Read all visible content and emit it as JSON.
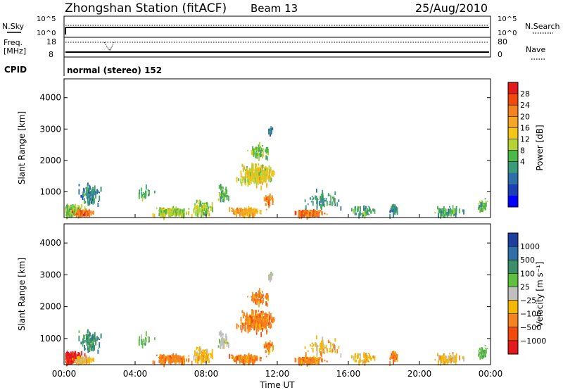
{
  "header": {
    "station": "Zhongshan Station (fitACF)",
    "beam": "Beam 13",
    "date": "25/Aug/2010"
  },
  "top_panels": {
    "nsky_label": "N.Sky",
    "nsearch_label": "N.Search",
    "nsky_ticks": [
      "10^5",
      "10^0"
    ],
    "nsearch_ticks": [
      "10^5",
      "10^0"
    ],
    "freq_label_1": "Freq.",
    "freq_label_2": "[MHz]",
    "freq_ticks": [
      "18",
      "8"
    ],
    "nave_label": "Nave",
    "nave_ticks": [
      "80",
      "0"
    ],
    "cpid_label": "CPID",
    "cpid_text": "normal (stereo) 152"
  },
  "chart_data": [
    {
      "type": "heatmap",
      "parameter": "power",
      "xlabel": "",
      "ylabel": "Slant Range [km]",
      "xlim": [
        0,
        24
      ],
      "ylim": [
        180,
        4600
      ],
      "yticks": [
        1000,
        2000,
        3000,
        4000
      ],
      "colorbar": {
        "label": "Power [dB]",
        "ticks": [
          "28",
          "24",
          "20",
          "16",
          "12",
          "8",
          "4"
        ],
        "colors": [
          "#e31a1c",
          "#f24a0c",
          "#f58220",
          "#f5a623",
          "#f5c518",
          "#b5d334",
          "#4cb847",
          "#3a9a7a",
          "#2f6fa8",
          "#1c3fb5",
          "#0000ff"
        ]
      }
    },
    {
      "type": "heatmap",
      "parameter": "velocity",
      "xlabel": "Time UT",
      "ylabel": "Slant Range [km]",
      "xlim": [
        0,
        24
      ],
      "ylim": [
        180,
        4600
      ],
      "xticks": [
        "00:00",
        "04:00",
        "08:00",
        "12:00",
        "16:00",
        "20:00",
        "00:00"
      ],
      "yticks": [
        1000,
        2000,
        3000,
        4000
      ],
      "colorbar": {
        "label": "Velocity [m s⁻¹]",
        "ticks": [
          "1000",
          "500",
          "100",
          "25",
          "−25",
          "−100",
          "−500",
          "−1000"
        ],
        "colors": [
          "#1f3f9f",
          "#2f6fa8",
          "#3a8f6a",
          "#5fbf3f",
          "#bfbfbf",
          "#f5b800",
          "#f58220",
          "#f24a0c",
          "#e31a1c"
        ]
      }
    }
  ]
}
